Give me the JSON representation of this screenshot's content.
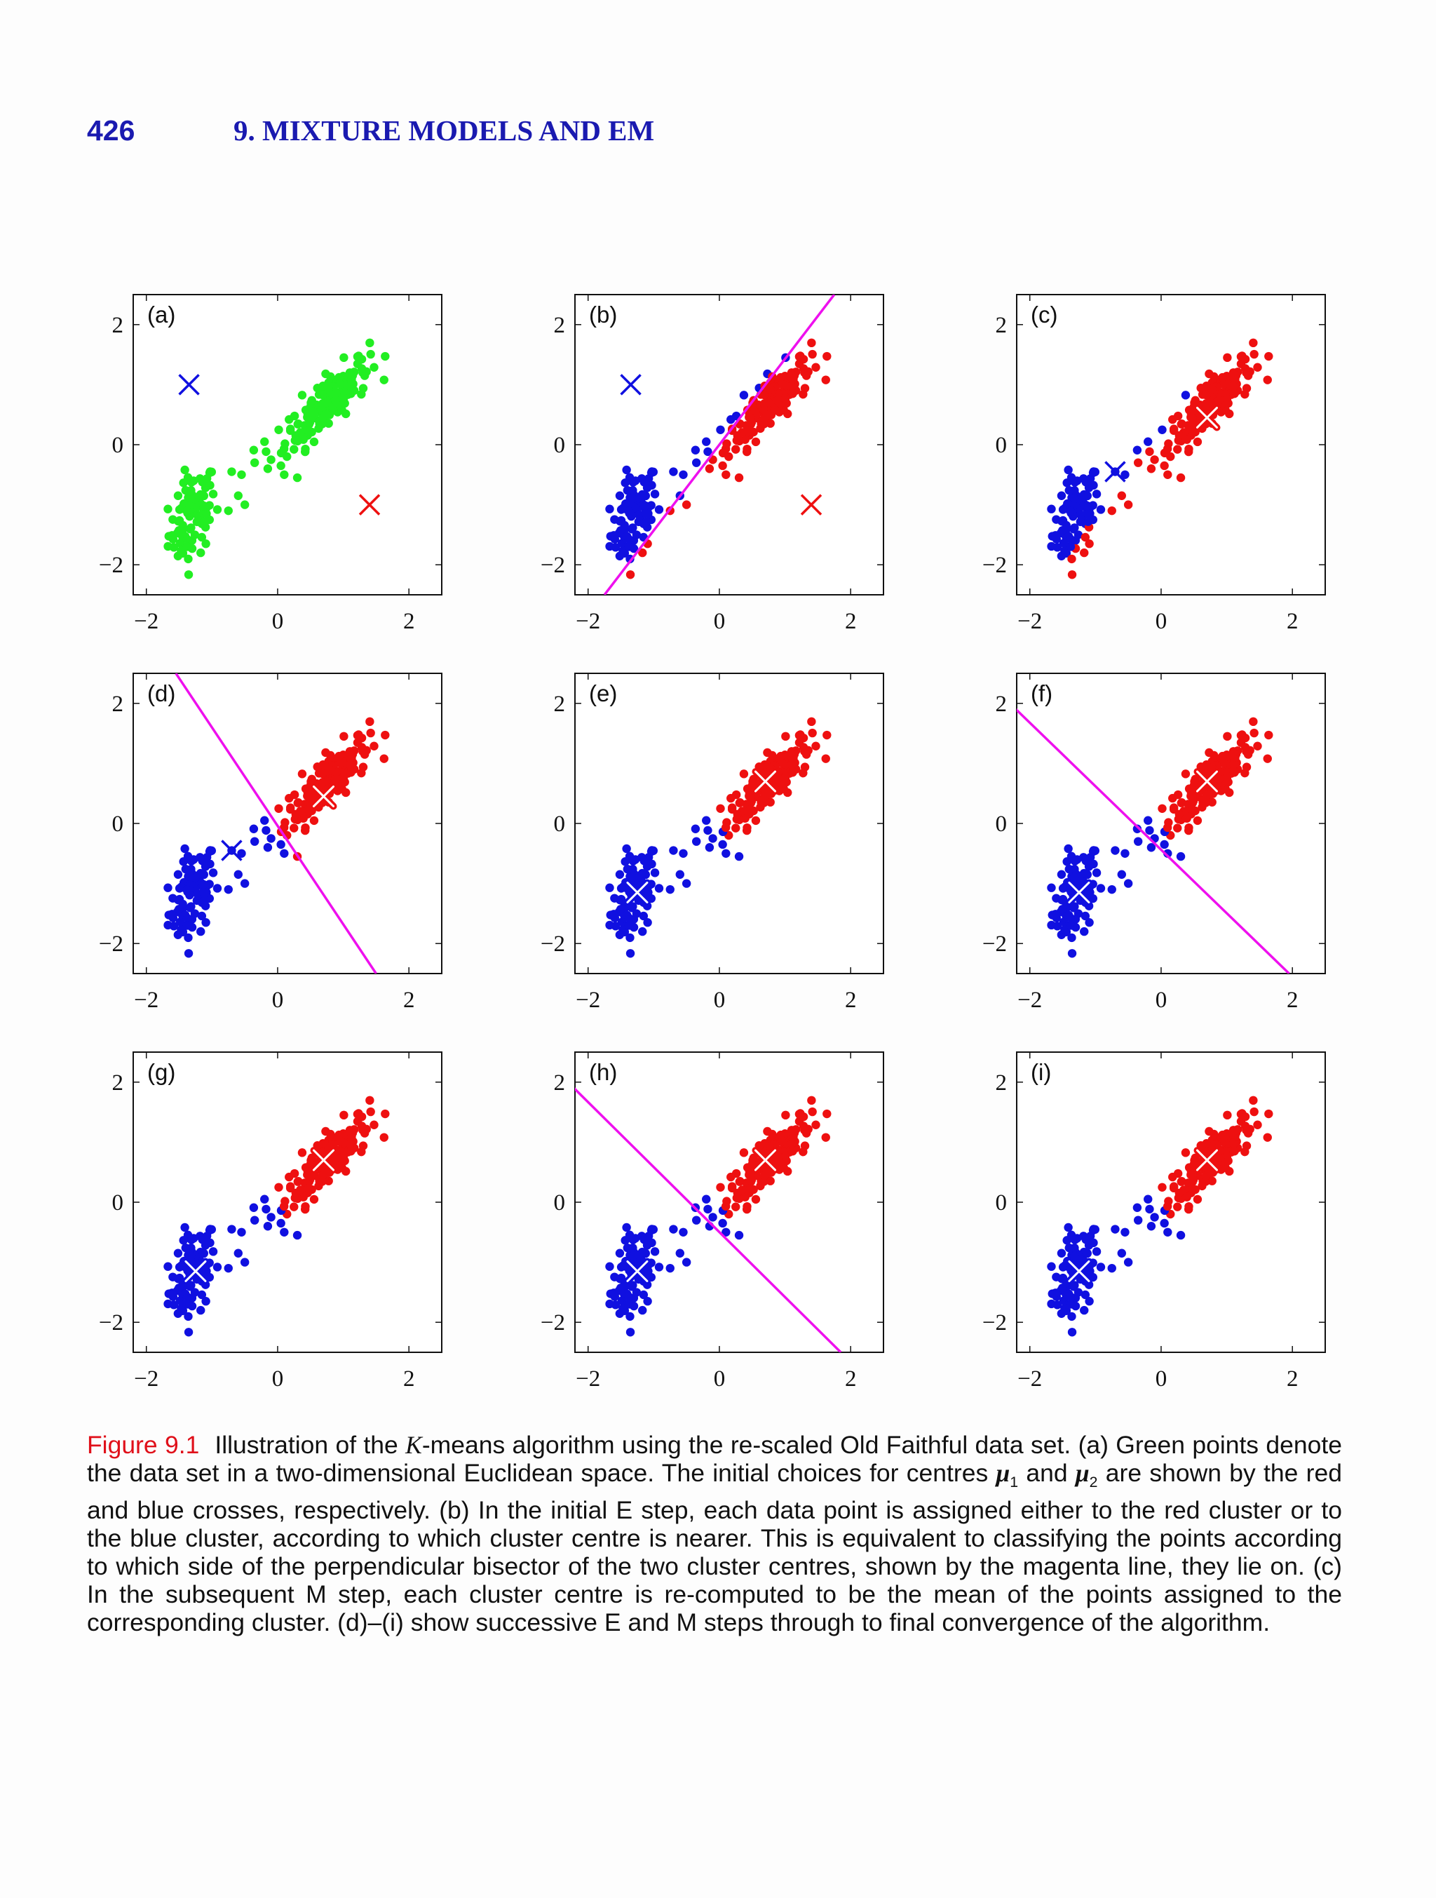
{
  "header": {
    "page_number": "426",
    "chapter": "9. MIXTURE MODELS AND EM"
  },
  "colors": {
    "header": "#1a1ab0",
    "green": "#22ee22",
    "blue": "#1010e0",
    "red": "#ee1010",
    "magenta": "#ee10ee",
    "caption_label": "#e0101a"
  },
  "axis": {
    "x_ticks": [
      "−2",
      "0",
      "2"
    ],
    "y_ticks": [
      "2",
      "0",
      "−2"
    ],
    "xlim": [
      -2.2,
      2.5
    ],
    "ylim": [
      -2.5,
      2.5
    ]
  },
  "panels": [
    {
      "label": "(a)",
      "mode": "green",
      "red_center": [
        1.4,
        -1.0
      ],
      "blue_center": [
        -1.35,
        1.0
      ],
      "cross_style": "plain",
      "line": null
    },
    {
      "label": "(b)",
      "mode": "assign",
      "red_center": [
        1.4,
        -1.0
      ],
      "blue_center": [
        -1.35,
        1.0
      ],
      "cross_style": "plain",
      "line": [
        [
          -1.75,
          -2.5
        ],
        [
          1.75,
          2.5
        ]
      ]
    },
    {
      "label": "(c)",
      "mode": "assign_b",
      "red_center": [
        0.7,
        0.45
      ],
      "blue_center": [
        -0.7,
        -0.45
      ],
      "cross_style": "mixed",
      "line": null
    },
    {
      "label": "(d)",
      "mode": "assign_d",
      "red_center": [
        0.7,
        0.45
      ],
      "blue_center": [
        -0.7,
        -0.45
      ],
      "cross_style": "mixed",
      "line": [
        [
          -1.55,
          2.5
        ],
        [
          1.5,
          -2.5
        ]
      ]
    },
    {
      "label": "(e)",
      "mode": "final",
      "red_center": [
        0.7,
        0.7
      ],
      "blue_center": [
        -1.25,
        -1.15
      ],
      "cross_style": "white",
      "line": null
    },
    {
      "label": "(f)",
      "mode": "final",
      "red_center": [
        0.7,
        0.7
      ],
      "blue_center": [
        -1.25,
        -1.15
      ],
      "cross_style": "white",
      "line": [
        [
          -2.4,
          2.1
        ],
        [
          1.95,
          -2.5
        ]
      ]
    },
    {
      "label": "(g)",
      "mode": "final",
      "red_center": [
        0.7,
        0.7
      ],
      "blue_center": [
        -1.25,
        -1.15
      ],
      "cross_style": "white",
      "line": null
    },
    {
      "label": "(h)",
      "mode": "final",
      "red_center": [
        0.7,
        0.7
      ],
      "blue_center": [
        -1.25,
        -1.15
      ],
      "cross_style": "white",
      "line": [
        [
          -2.4,
          2.1
        ],
        [
          1.85,
          -2.5
        ]
      ]
    },
    {
      "label": "(i)",
      "mode": "final",
      "red_center": [
        0.7,
        0.7
      ],
      "blue_center": [
        -1.25,
        -1.15
      ],
      "cross_style": "white",
      "line": null
    }
  ],
  "caption": {
    "label": "Figure 9.1",
    "t1": "Illustration of the ",
    "k": "K",
    "t2": "-means algorithm using the re-scaled Old Faithful data set. (a) Green points denote the data set in a two-dimensional Euclidean space. The initial choices for centres ",
    "mu": "μ",
    "s1": "1",
    "t3": " and ",
    "s2": "2",
    "t4": " are shown by the red and blue crosses, respectively. (b) In the initial E step, each data point is assigned either to the red cluster or to the blue cluster, according to which cluster centre is nearer. This is equivalent to classifying the points according to which side of the perpendicular bisector of the two cluster centres, shown by the magenta line, they lie on. (c) In the subsequent M step, each cluster centre is re-computed to be the mean of the points assigned to the corresponding cluster. (d)–(i) show successive E and M steps through to final convergence of the algorithm."
  }
}
